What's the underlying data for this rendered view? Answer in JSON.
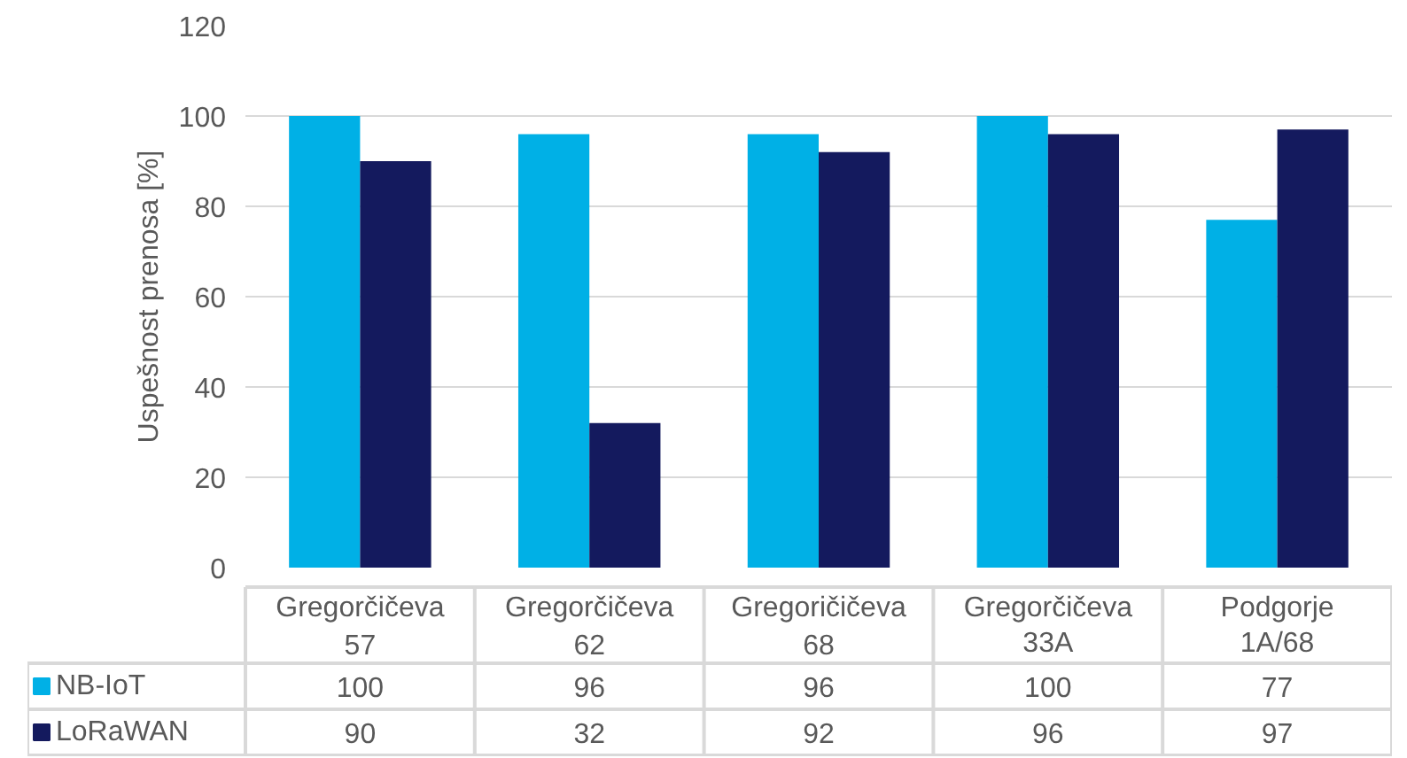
{
  "chart_data": {
    "type": "bar",
    "ylabel": "Uspešnost prenosa [%]",
    "categories": [
      "Gregorčičeva 57",
      "Gregorčičeva 62",
      "Gregoričičeva 68",
      "Gregorčičeva 33A",
      "Podgorje 1A/68"
    ],
    "series": [
      {
        "name": "NB-IoT",
        "color": "#00b0e6",
        "values": [
          100,
          96,
          96,
          100,
          77
        ]
      },
      {
        "name": "LoRaWAN",
        "color": "#141a5e",
        "values": [
          90,
          32,
          92,
          96,
          97
        ]
      }
    ],
    "ylim": [
      0,
      120
    ],
    "yticks": [
      0,
      20,
      40,
      60,
      80,
      100,
      120
    ],
    "grid": "y",
    "legend": "bottom",
    "data_labels": true
  }
}
